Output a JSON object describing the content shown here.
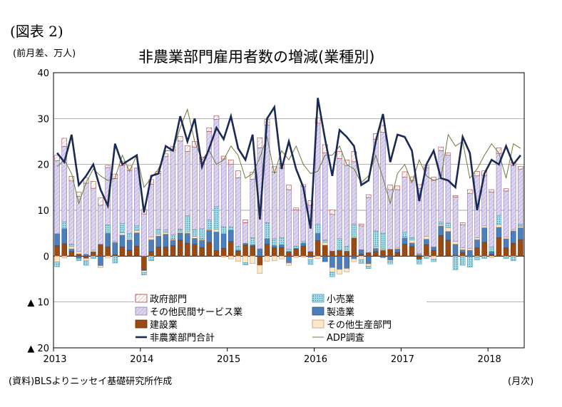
{
  "figure_label": "(図表 2)",
  "unit_label": "(前月差、万人)",
  "source_note": "(資料)BLSよりニッセイ基礎研究所作成",
  "x_unit_label": "(月次)",
  "colors": {
    "government": "#ffffff",
    "government_stroke": "#a04040",
    "retail": "#a8dce8",
    "retail_stroke": "#4a9fb8",
    "other_services": "#ddd6ee",
    "other_services_stroke": "#8a7ab8",
    "manufacturing": "#4d7fbd",
    "manufacturing_stroke": "#2a4f80",
    "construction": "#9a4a12",
    "construction_stroke": "#6a2e08",
    "other_goods": "#fde8cc",
    "other_goods_stroke": "#c8946a",
    "total_line": "#1a2a55",
    "adp_line": "#6e7a3a"
  },
  "chart_data": {
    "type": "bar",
    "title": "非農業部門雇用者数の増減(業種別)",
    "ylim": [
      -20,
      40
    ],
    "y_ticks": [
      {
        "value": 40,
        "label": "40"
      },
      {
        "value": 30,
        "label": "30"
      },
      {
        "value": 20,
        "label": "20"
      },
      {
        "value": 10,
        "label": "10"
      },
      {
        "value": 0,
        "label": "0"
      },
      {
        "value": -10,
        "label": "▲ 10"
      },
      {
        "value": -20,
        "label": "▲ 20"
      }
    ],
    "x_ticks": [
      {
        "index": 0,
        "label": "2013"
      },
      {
        "index": 12,
        "label": "2014"
      },
      {
        "index": 24,
        "label": "2015"
      },
      {
        "index": 36,
        "label": "2016"
      },
      {
        "index": 48,
        "label": "2017"
      },
      {
        "index": 60,
        "label": "2018"
      }
    ],
    "grid": true,
    "legend": [
      {
        "key": "government",
        "label": "政府部門",
        "kind": "bar"
      },
      {
        "key": "retail",
        "label": "小売業",
        "kind": "bar"
      },
      {
        "key": "other_services",
        "label": "その他民間サービス業",
        "kind": "bar"
      },
      {
        "key": "manufacturing",
        "label": "製造業",
        "kind": "bar"
      },
      {
        "key": "construction",
        "label": "建設業",
        "kind": "bar"
      },
      {
        "key": "other_goods",
        "label": "その他生産部門",
        "kind": "bar"
      },
      {
        "key": "total_line",
        "label": "非農業部門合計",
        "kind": "line"
      },
      {
        "key": "adp_line",
        "label": "ADP調査",
        "kind": "line"
      }
    ],
    "series": [
      {
        "key": "construction",
        "name": "建設業",
        "values": [
          2.3,
          2.7,
          1.0,
          0.5,
          -0.5,
          0.8,
          2.6,
          2.0,
          0.3,
          2.0,
          1.3,
          2.2,
          -3.0,
          1.0,
          2.0,
          2.0,
          2.3,
          3.5,
          2.8,
          2.6,
          1.9,
          3.0,
          1.2,
          1.7,
          3.2,
          1.1,
          2.4,
          2.2,
          -2.0,
          2.6,
          1.8,
          1.9,
          1.0,
          1.6,
          2.2,
          1.0,
          3.4,
          2.4,
          1.1,
          1.3,
          1.1,
          4.0,
          0.4,
          0.8,
          1.0,
          1.3,
          1.5,
          0.8,
          2.6,
          2.1,
          -0.7,
          2.5,
          1.2,
          4.5,
          3.5,
          0.2,
          0.8,
          -0.1,
          1.8,
          3.0,
          0.4,
          4.0,
          1.8,
          2.8,
          3.6
        ]
      },
      {
        "key": "manufacturing",
        "name": "製造業",
        "values": [
          2.6,
          3.3,
          0.6,
          -0.5,
          0.4,
          0.2,
          -2.1,
          3.0,
          2.7,
          2.6,
          2.3,
          2.9,
          -0.2,
          2.6,
          2.4,
          2.8,
          1.2,
          1.6,
          2.2,
          1.3,
          1.6,
          2.7,
          4.1,
          3.2,
          2.5,
          0.2,
          0.4,
          0.3,
          1.6,
          1.2,
          0.5,
          0.6,
          -1.5,
          0.1,
          0.6,
          -0.3,
          1.6,
          -1.2,
          -2.5,
          -2.9,
          -2.7,
          -0.6,
          1.0,
          -1.7,
          0.7,
          -0.3,
          -0.9,
          0.8,
          1.4,
          0.8,
          0.4,
          1.2,
          0.8,
          2.1,
          1.9,
          2.4,
          0.6,
          1.3,
          1.8,
          3.2,
          0.6,
          2.3,
          2.0,
          2.7,
          2.6
        ]
      },
      {
        "key": "other_goods",
        "name": "その他生産部門",
        "values": [
          -1.3,
          -0.4,
          0.5,
          0.5,
          -0.5,
          0.3,
          -0.4,
          -0.4,
          0.2,
          0.5,
          0.3,
          0.5,
          -0.4,
          0.6,
          0.4,
          0.4,
          0.2,
          0.3,
          0.3,
          0.4,
          0.2,
          0.2,
          0.5,
          -0.2,
          -0.6,
          -1.1,
          -1.4,
          -1.6,
          -1.8,
          -1.1,
          -1.0,
          -0.6,
          -0.5,
          -0.3,
          -0.2,
          -0.5,
          -0.5,
          0.6,
          -1.0,
          -1.0,
          -0.7,
          -0.6,
          -0.8,
          -0.5,
          0.3,
          0.2,
          -0.3,
          0.3,
          0.2,
          0.6,
          0.2,
          0.6,
          -0.7,
          0.3,
          0.8,
          0.6,
          0.4,
          0.4,
          0.4,
          0.4,
          -0.3,
          0.6,
          0.4,
          0.3,
          0.3
        ]
      },
      {
        "key": "retail",
        "name": "小売業",
        "values": [
          -1.0,
          1.5,
          0.5,
          -0.5,
          -1.0,
          -0.5,
          0.0,
          1.8,
          -1.5,
          2.0,
          1.0,
          1.0,
          -0.5,
          -1.0,
          1.0,
          0.5,
          1.0,
          0.5,
          3.5,
          1.5,
          2.3,
          2.0,
          5.0,
          1.5,
          0.7,
          0.8,
          -0.5,
          1.5,
          0.0,
          3.5,
          1.5,
          1.5,
          0.5,
          0.5,
          0.4,
          -1.0,
          2.0,
          0.5,
          -1.0,
          2.5,
          1.0,
          3.0,
          -0.8,
          -0.5,
          3.5,
          3.5,
          -0.5,
          0.0,
          1.0,
          0.5,
          -1.0,
          -0.5,
          -0.5,
          0.5,
          1.0,
          -3.0,
          -2.0,
          -2.3,
          -0.8,
          -0.5,
          1.0,
          2.0,
          -0.5,
          -1.0,
          0.5
        ]
      },
      {
        "key": "other_services",
        "name": "その他民間サービス業",
        "values": [
          15.9,
          16.4,
          13.8,
          12.0,
          15.5,
          13.5,
          8.5,
          12.5,
          13.7,
          12.6,
          13.8,
          12.6,
          9.2,
          11.5,
          12.2,
          16.0,
          18.4,
          19.2,
          14.0,
          18.0,
          14.6,
          19.3,
          19.0,
          14.8,
          13.6,
          15.0,
          4.5,
          12.8,
          22.0,
          21.3,
          14.5,
          15.2,
          13.0,
          7.9,
          12.0,
          10.1,
          22.0,
          19.0,
          8.0,
          17.5,
          17.7,
          13.6,
          5.2,
          12.0,
          20.0,
          22.0,
          13.0,
          12.6,
          12.0,
          12.5,
          14.2,
          15.0,
          14.5,
          15.6,
          14.8,
          9.7,
          5.0,
          12.0,
          13.5,
          11.0,
          12.0,
          13.5,
          10.0,
          14.0,
          12.0
        ]
      },
      {
        "key": "government",
        "name": "政府部門",
        "values": [
          1.2,
          1.8,
          1.0,
          1.0,
          1.2,
          1.5,
          1.6,
          0.5,
          1.0,
          1.0,
          1.0,
          0.0,
          1.0,
          1.0,
          0.5,
          0.6,
          0.8,
          1.0,
          1.3,
          1.2,
          1.0,
          0.8,
          0.8,
          0.6,
          1.0,
          1.5,
          0.6,
          1.5,
          2.2,
          1.2,
          1.2,
          1.0,
          1.0,
          0.4,
          0.4,
          1.0,
          1.1,
          1.8,
          1.0,
          1.5,
          1.2,
          2.2,
          0.4,
          0.6,
          1.2,
          1.5,
          1.0,
          0.8,
          1.2,
          0.8,
          0.8,
          0.5,
          0.7,
          0.8,
          0.5,
          0.3,
          0.5,
          0.8,
          1.0,
          1.0,
          0.5,
          1.2,
          0.5,
          0.6,
          0.6
        ]
      },
      {
        "key": "total_line",
        "name": "非農業部門合計",
        "values": [
          22.5,
          20.5,
          26.5,
          15.5,
          17.5,
          20.0,
          14.5,
          11.0,
          24.5,
          20.0,
          21.0,
          22.0,
          9.5,
          17.5,
          18.0,
          24.0,
          23.0,
          30.5,
          25.0,
          30.0,
          19.5,
          23.5,
          28.0,
          25.5,
          30.5,
          23.5,
          21.0,
          26.5,
          8.0,
          30.0,
          32.5,
          19.0,
          25.0,
          19.0,
          15.0,
          6.0,
          34.5,
          25.5,
          17.5,
          27.5,
          26.0,
          24.0,
          15.5,
          16.5,
          25.0,
          31.0,
          20.5,
          26.5,
          26.0,
          23.0,
          12.0,
          20.0,
          23.0,
          17.0,
          16.5,
          15.0,
          26.0,
          22.5,
          10.0,
          18.0,
          21.0,
          20.0,
          24.0,
          20.0,
          22.0
        ]
      },
      {
        "key": "adp_line",
        "name": "ADP調査",
        "values": [
          19.5,
          21.0,
          18.0,
          11.5,
          16.0,
          19.0,
          17.5,
          16.5,
          17.0,
          22.0,
          18.5,
          22.0,
          15.0,
          17.0,
          19.0,
          23.0,
          23.0,
          28.0,
          32.0,
          25.0,
          21.0,
          23.0,
          20.0,
          21.0,
          24.0,
          22.0,
          17.0,
          18.0,
          21.5,
          26.0,
          18.0,
          23.0,
          21.0,
          24.0,
          20.0,
          18.0,
          18.5,
          22.0,
          22.0,
          24.0,
          20.0,
          19.0,
          16.0,
          17.5,
          22.0,
          17.0,
          11.5,
          18.0,
          20.0,
          16.0,
          21.0,
          17.5,
          16.5,
          17.0,
          26.5,
          24.0,
          25.0,
          17.0,
          19.0,
          22.0,
          24.5,
          22.5,
          17.0,
          24.5,
          23.5
        ]
      }
    ]
  }
}
